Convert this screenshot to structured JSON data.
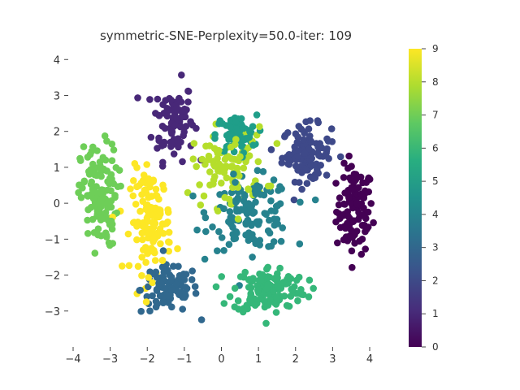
{
  "chart_data": {
    "type": "scatter",
    "title": "symmetric-SNE-Perplexity=50.0-iter: 109",
    "xlabel": "",
    "ylabel": "",
    "xlim": [
      -4.3,
      4.3
    ],
    "ylim": [
      -4.0,
      4.3
    ],
    "x_ticks": [
      -4,
      -3,
      -2,
      -1,
      0,
      1,
      2,
      3,
      4
    ],
    "y_ticks": [
      -3,
      -2,
      -1,
      0,
      1,
      2,
      3,
      4
    ],
    "grid": false,
    "colormap": "viridis",
    "colorbar": {
      "min": 0,
      "max": 9,
      "ticks": [
        0,
        1,
        2,
        3,
        4,
        5,
        6,
        7,
        8,
        9
      ]
    },
    "clusters": [
      {
        "label": 0,
        "color": "#440154",
        "approx_center": [
          3.6,
          -0.2
        ],
        "spread": [
          0.45,
          1.1
        ],
        "count": 110
      },
      {
        "label": 1,
        "color": "#482878",
        "approx_center": [
          -1.3,
          2.3
        ],
        "spread": [
          0.5,
          1.0
        ],
        "count": 90
      },
      {
        "label": 2,
        "color": "#3e4989",
        "approx_center": [
          2.3,
          1.4
        ],
        "spread": [
          0.6,
          0.7
        ],
        "count": 110
      },
      {
        "label": 3,
        "color": "#31688e",
        "approx_center": [
          -1.4,
          -2.4
        ],
        "spread": [
          0.7,
          0.6
        ],
        "count": 100
      },
      {
        "label": 4,
        "color": "#26828e",
        "approx_center": [
          0.8,
          -0.3
        ],
        "spread": [
          1.0,
          0.9
        ],
        "count": 130
      },
      {
        "label": 5,
        "color": "#1f9e89",
        "approx_center": [
          0.4,
          1.9
        ],
        "spread": [
          0.5,
          0.5
        ],
        "count": 70
      },
      {
        "label": 6,
        "color": "#35b779",
        "approx_center": [
          1.3,
          -2.4
        ],
        "spread": [
          0.9,
          0.6
        ],
        "count": 140
      },
      {
        "label": 7,
        "color": "#6ece58",
        "approx_center": [
          -3.3,
          0.2
        ],
        "spread": [
          0.45,
          1.3
        ],
        "count": 130
      },
      {
        "label": 8,
        "color": "#b5de2b",
        "approx_center": [
          0.2,
          1.0
        ],
        "spread": [
          0.9,
          1.0
        ],
        "count": 100
      },
      {
        "label": 9,
        "color": "#fde725",
        "approx_center": [
          -1.9,
          -0.5
        ],
        "spread": [
          0.5,
          1.3
        ],
        "count": 130
      }
    ]
  },
  "colors": {
    "viridis": [
      "#440154",
      "#472d7b",
      "#3b528b",
      "#2c728e",
      "#21918c",
      "#28ae80",
      "#5ec962",
      "#addc30",
      "#fde725"
    ]
  }
}
